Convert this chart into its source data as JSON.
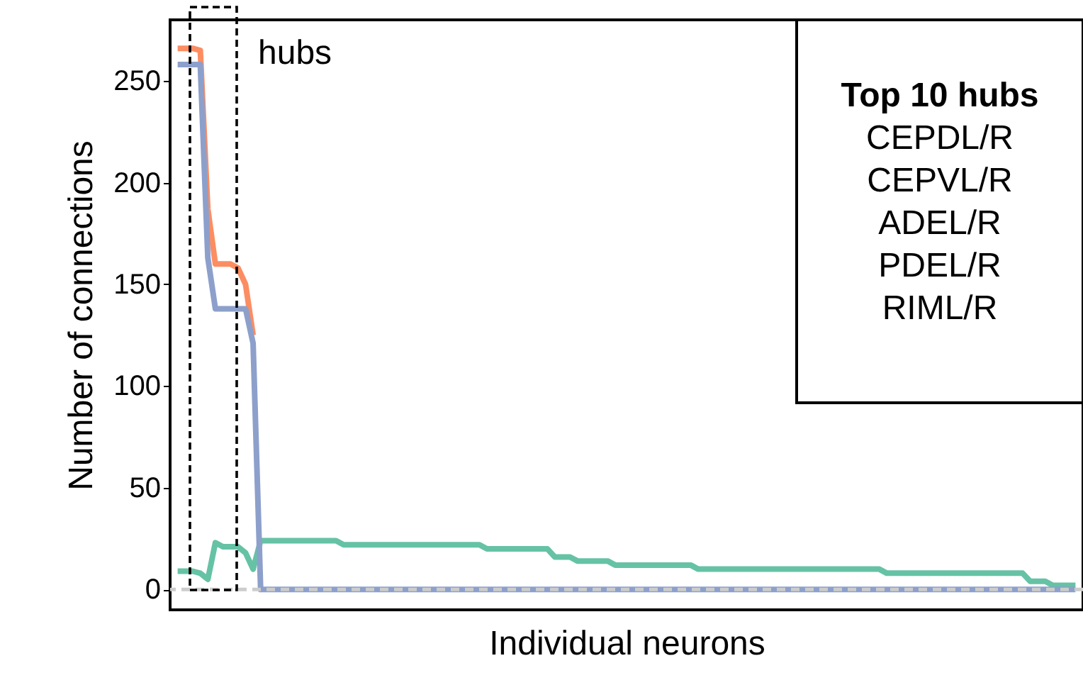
{
  "chart_data": {
    "type": "line",
    "xlabel": "Individual neurons",
    "ylabel": "Number of connections",
    "categories": [
      null,
      null,
      null,
      null,
      null,
      null,
      null,
      null,
      null,
      null,
      null,
      null,
      null,
      null,
      null,
      null,
      null,
      null,
      null,
      null,
      null,
      null,
      null,
      null,
      null,
      null,
      null,
      null,
      null,
      null,
      null,
      null,
      null,
      null,
      null,
      null,
      null,
      null,
      null,
      null,
      null,
      null,
      null,
      null,
      null,
      null,
      null,
      null,
      null,
      null,
      null,
      null,
      null,
      null,
      null,
      null,
      null,
      null,
      null,
      null,
      null,
      null,
      null,
      null,
      null,
      null,
      null,
      null,
      null,
      null,
      null,
      null,
      null,
      null,
      null,
      null,
      null,
      null,
      null,
      null,
      null,
      null,
      null,
      null,
      null,
      null,
      null,
      null,
      null,
      null,
      null,
      null,
      null,
      null,
      null,
      null,
      null,
      null,
      null,
      null,
      null,
      null,
      null,
      null,
      null,
      null,
      null,
      null,
      null,
      null,
      null,
      null,
      null,
      null,
      null,
      null,
      null,
      null,
      null,
      null
    ],
    "series": [
      {
        "color": "#fc8d62",
        "values": [
          266,
          266,
          266,
          265,
          187,
          160,
          160,
          160,
          158,
          150,
          125,
          null,
          null,
          null,
          null,
          null,
          null,
          null,
          null,
          null,
          null,
          null,
          null,
          null,
          null,
          null,
          null,
          null,
          null,
          null,
          null,
          null,
          null,
          null,
          null,
          null,
          null,
          null,
          null,
          null,
          null,
          null,
          null,
          null,
          null,
          null,
          null,
          null,
          null,
          null,
          null,
          null,
          null,
          null,
          null,
          null,
          null,
          null,
          null,
          null,
          null,
          null,
          null,
          null,
          null,
          null,
          null,
          null,
          null,
          null,
          null,
          null,
          null,
          null,
          null,
          null,
          null,
          null,
          null,
          null,
          null,
          null,
          null,
          null,
          null,
          null,
          null,
          null,
          null,
          null,
          null,
          null,
          null,
          null,
          null,
          null,
          null,
          null,
          null,
          null,
          null,
          null,
          null,
          null,
          null,
          null,
          null,
          null,
          null,
          null,
          null,
          null,
          null,
          null,
          null,
          null,
          null,
          null,
          null,
          null
        ]
      },
      {
        "color": "#66c2a5",
        "values": [
          9,
          9,
          9,
          8,
          5,
          23,
          21,
          21,
          21,
          18,
          10,
          24,
          24,
          24,
          24,
          24,
          24,
          24,
          24,
          24,
          24,
          24,
          22,
          22,
          22,
          22,
          22,
          22,
          22,
          22,
          22,
          22,
          22,
          22,
          22,
          22,
          22,
          22,
          22,
          22,
          22,
          20,
          20,
          20,
          20,
          20,
          20,
          20,
          20,
          20,
          16,
          16,
          16,
          14,
          14,
          14,
          14,
          14,
          12,
          12,
          12,
          12,
          12,
          12,
          12,
          12,
          12,
          12,
          12,
          10,
          10,
          10,
          10,
          10,
          10,
          10,
          10,
          10,
          10,
          10,
          10,
          10,
          10,
          10,
          10,
          10,
          10,
          10,
          10,
          10,
          10,
          10,
          10,
          10,
          8,
          8,
          8,
          8,
          8,
          8,
          8,
          8,
          8,
          8,
          8,
          8,
          8,
          8,
          8,
          8,
          8,
          8,
          8,
          4,
          4,
          4,
          2,
          2,
          2,
          2
        ]
      },
      {
        "color": "#8da0cb",
        "values": [
          258,
          258,
          258,
          258,
          163,
          138,
          138,
          138,
          138,
          138,
          121,
          0,
          0,
          0,
          0,
          0,
          0,
          0,
          0,
          0,
          0,
          0,
          0,
          0,
          0,
          0,
          0,
          0,
          0,
          0,
          0,
          0,
          0,
          0,
          0,
          0,
          0,
          0,
          0,
          0,
          0,
          0,
          0,
          0,
          0,
          0,
          0,
          0,
          0,
          0,
          0,
          0,
          0,
          0,
          0,
          0,
          0,
          0,
          0,
          0,
          0,
          0,
          0,
          0,
          0,
          0,
          0,
          0,
          0,
          0,
          0,
          0,
          0,
          0,
          0,
          0,
          0,
          0,
          0,
          0,
          0,
          0,
          0,
          0,
          0,
          0,
          0,
          0,
          0,
          0,
          0,
          0,
          0,
          0,
          0,
          0,
          0,
          0,
          0,
          0,
          0,
          0,
          0,
          0,
          0,
          0,
          0,
          0,
          0,
          0,
          0,
          0,
          0,
          0,
          0,
          0,
          0,
          0,
          0,
          0
        ]
      }
    ],
    "ylim": [
      -10,
      280
    ],
    "yticks": [
      0,
      50,
      100,
      150,
      200,
      250
    ],
    "tick_labels": "y",
    "grid": false,
    "ref_lines": [
      {
        "axis": "y",
        "value": 0,
        "color": "#cccccc",
        "line_style": "dashed"
      }
    ],
    "annotations": [
      "hubs",
      "Top 10 hubs",
      "CEPDL/R",
      "CEPVL/R",
      "ADEL/R",
      "PDEL/R",
      "RIML/R"
    ]
  }
}
